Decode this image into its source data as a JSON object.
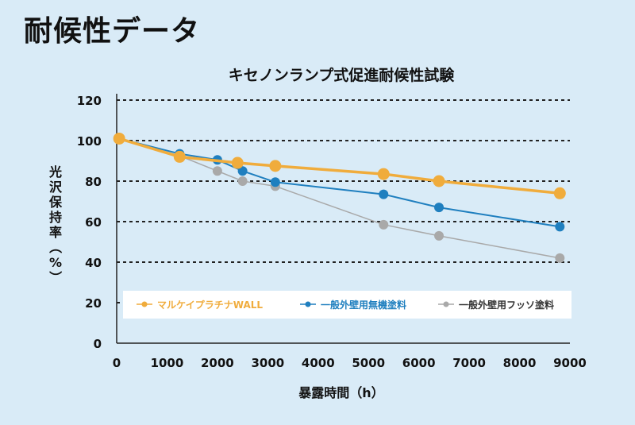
{
  "page": {
    "title": "耐候性データ"
  },
  "chart_data": {
    "type": "line",
    "title": "キセノンランプ式促進耐候性試験",
    "xlabel": "暴露時間（h）",
    "ylabel": "光沢保持率（%）",
    "xlim": [
      0,
      9000
    ],
    "ylim": [
      0,
      120
    ],
    "xticks": [
      0,
      1000,
      2000,
      3000,
      4000,
      5000,
      6000,
      7000,
      8000,
      9000
    ],
    "yticks": [
      0,
      20,
      40,
      60,
      80,
      100,
      120
    ],
    "grid": "horizontal-dashed",
    "legend_position": "bottom-inside",
    "series": [
      {
        "name": "マルケイプラチナWALL",
        "color": "#f0ac3c",
        "points": [
          [
            50,
            101
          ],
          [
            1250,
            92
          ],
          [
            2400,
            89
          ],
          [
            3150,
            87.5
          ],
          [
            5300,
            83.5
          ],
          [
            6400,
            80
          ],
          [
            8800,
            74
          ]
        ]
      },
      {
        "name": "一般外壁用無機塗料",
        "color": "#1f7fbf",
        "points": [
          [
            50,
            101
          ],
          [
            1250,
            93.5
          ],
          [
            2000,
            90.5
          ],
          [
            2500,
            85
          ],
          [
            3150,
            79.5
          ],
          [
            5300,
            73.5
          ],
          [
            6400,
            67
          ],
          [
            8800,
            57.5
          ]
        ]
      },
      {
        "name": "一般外壁用フッソ塗料",
        "color": "#a9a9a9",
        "points": [
          [
            50,
            101
          ],
          [
            1250,
            92.5
          ],
          [
            2000,
            85
          ],
          [
            2500,
            80
          ],
          [
            3150,
            77.5
          ],
          [
            5300,
            58.5
          ],
          [
            6400,
            53
          ],
          [
            8800,
            42
          ]
        ]
      }
    ]
  }
}
